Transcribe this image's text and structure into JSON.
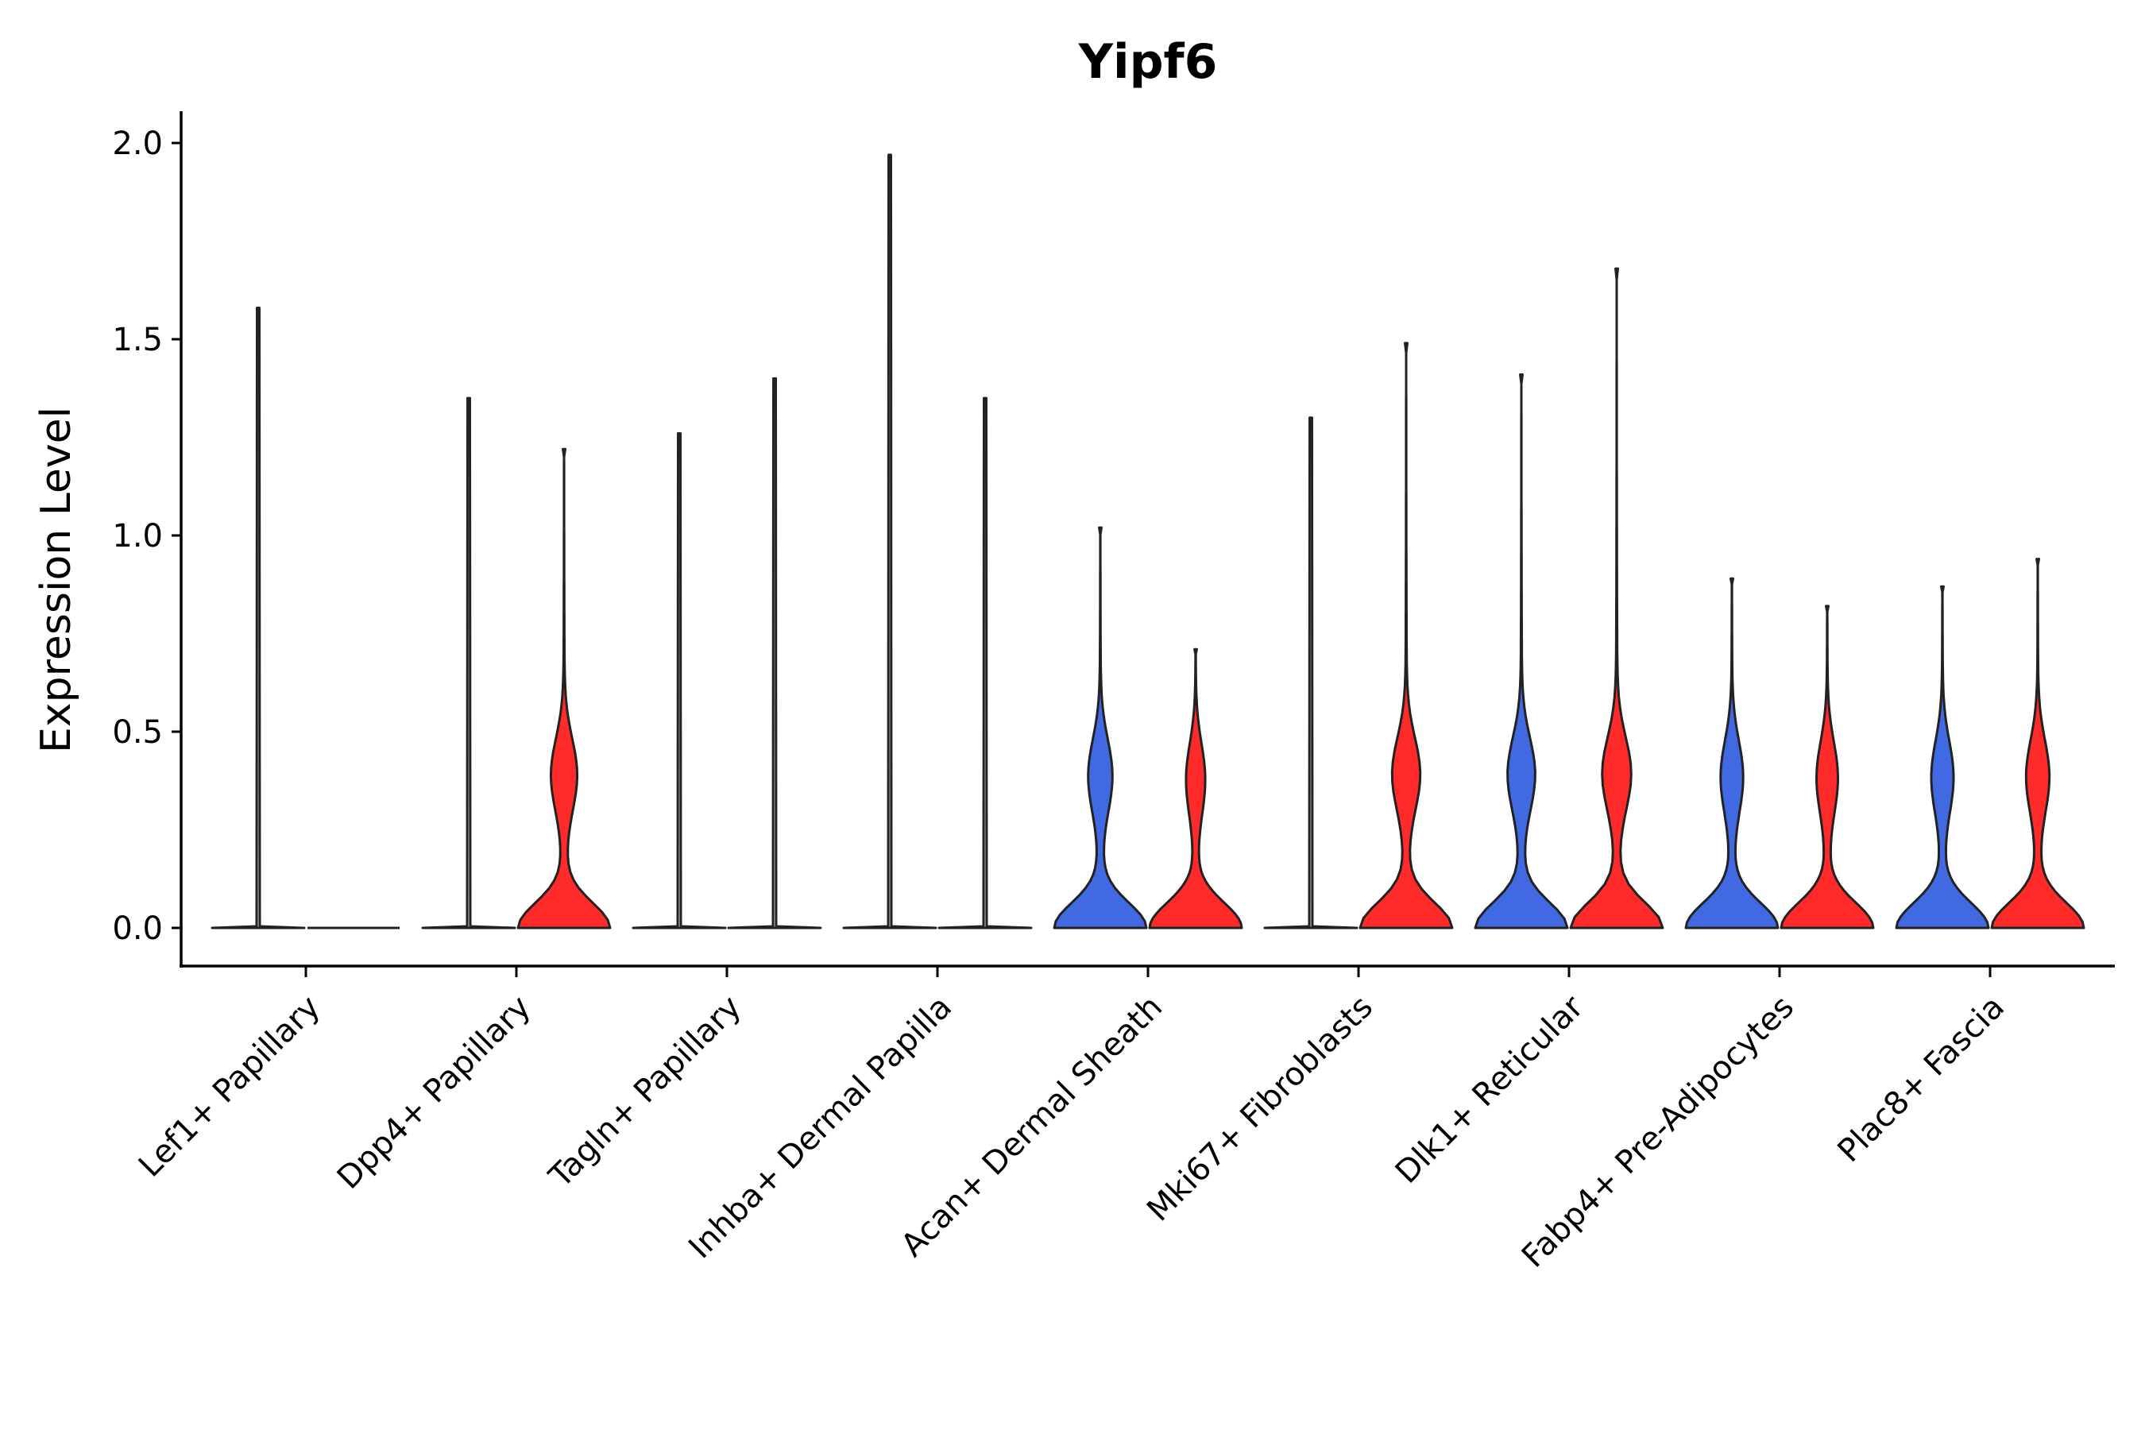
{
  "chart_data": {
    "type": "violin",
    "title": "Yipf6",
    "xlabel": "",
    "ylabel": "Expression Level",
    "ylim": [
      -0.1,
      2.08
    ],
    "yticks": [
      "0.0",
      "0.5",
      "1.0",
      "1.5",
      "2.0"
    ],
    "ytick_values": [
      0,
      0.5,
      1.0,
      1.5,
      2.0
    ],
    "categories": [
      "Lef1+ Papillary",
      "Dpp4+ Papillary",
      "Tagln+ Papillary",
      "Inhba+ Dermal Papilla",
      "Acan+ Dermal Sheath",
      "Mki67+ Fibroblasts",
      "Dlk1+ Reticular",
      "Fabp4+ Pre-Adipocytes",
      "Plac8+ Fascia"
    ],
    "series": [
      {
        "name": "group-1",
        "color": "#4169E1",
        "max": [
          1.58,
          1.35,
          1.26,
          1.97,
          1.02,
          1.3,
          1.41,
          0.89,
          0.87
        ],
        "shape": [
          "flat",
          "flat",
          "flat",
          "flat",
          "full",
          "flat",
          "full",
          "full",
          "full"
        ]
      },
      {
        "name": "group-2",
        "color": "#FF2A2A",
        "max": [
          0.0,
          1.22,
          1.4,
          1.35,
          0.71,
          1.49,
          1.68,
          0.82,
          0.94
        ],
        "shape": [
          "none",
          "full",
          "flat",
          "flat",
          "full",
          "full",
          "full",
          "full",
          "full"
        ]
      }
    ],
    "neutral_color": "#cccccc",
    "grid": false,
    "legend": "none"
  }
}
